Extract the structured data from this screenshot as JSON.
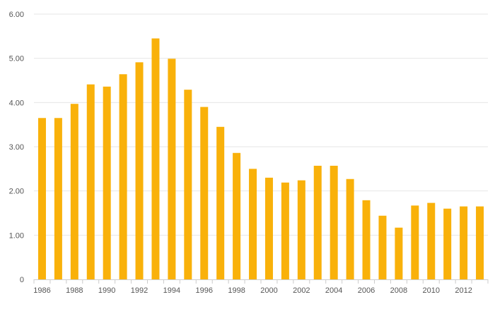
{
  "chart_data": {
    "type": "bar",
    "categories": [
      "1986",
      "1987",
      "1988",
      "1989",
      "1990",
      "1991",
      "1992",
      "1993",
      "1994",
      "1995",
      "1996",
      "1997",
      "1998",
      "1999",
      "2000",
      "2001",
      "2002",
      "2003",
      "2004",
      "2005",
      "2006",
      "2007",
      "2008",
      "2009",
      "2010",
      "2011",
      "2012",
      "2013"
    ],
    "values": [
      3.65,
      3.65,
      3.97,
      4.41,
      4.36,
      4.64,
      4.91,
      5.45,
      4.99,
      4.29,
      3.9,
      3.45,
      2.86,
      2.5,
      2.3,
      2.19,
      2.24,
      2.57,
      2.57,
      2.27,
      1.79,
      1.44,
      1.17,
      1.67,
      1.73,
      1.6,
      1.65,
      1.65
    ],
    "x_tick_labels": [
      "1986",
      "1988",
      "1990",
      "1992",
      "1994",
      "1996",
      "1998",
      "2000",
      "2002",
      "2004",
      "2006",
      "2008",
      "2010",
      "2012"
    ],
    "y_tick_labels": [
      "0",
      "1.00",
      "2.00",
      "3.00",
      "4.00",
      "5.00",
      "6.00"
    ],
    "ylim": [
      0,
      6
    ],
    "grid": true,
    "bar_color": "#F9B10A",
    "grid_color": "#e6e6e6",
    "axis_color": "#cccccc"
  }
}
